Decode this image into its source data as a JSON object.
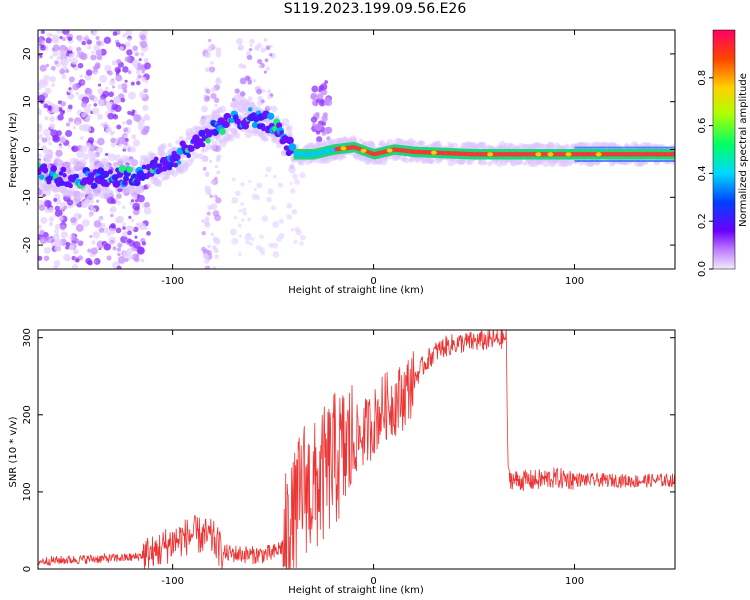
{
  "figure": {
    "title": "S119.2023.199.09.56.E26"
  },
  "chart_data": [
    {
      "type": "heatmap",
      "xlabel": "Height of straight line (km)",
      "ylabel": "Frequency (Hz)",
      "xlim": [
        -167,
        150
      ],
      "ylim": [
        -25,
        25
      ],
      "x_ticks": [
        -100,
        0,
        100
      ],
      "y_ticks": [
        -20,
        -10,
        0,
        10,
        20
      ],
      "colorbar": {
        "label": "Normalized spectral amplitude",
        "range": [
          0,
          1
        ],
        "ticks": [
          0.0,
          0.2,
          0.4,
          0.6,
          0.8
        ]
      },
      "ridge": [
        {
          "x": -167,
          "y": -5
        },
        {
          "x": -150,
          "y": -6
        },
        {
          "x": -130,
          "y": -6
        },
        {
          "x": -115,
          "y": -5
        },
        {
          "x": -100,
          "y": -2
        },
        {
          "x": -90,
          "y": 1
        },
        {
          "x": -80,
          "y": 4
        },
        {
          "x": -70,
          "y": 6
        },
        {
          "x": -60,
          "y": 7
        },
        {
          "x": -50,
          "y": 5
        },
        {
          "x": -45,
          "y": 3
        },
        {
          "x": -40,
          "y": -1
        },
        {
          "x": -30,
          "y": -1
        },
        {
          "x": -20,
          "y": 0
        },
        {
          "x": -10,
          "y": 0.5
        },
        {
          "x": 0,
          "y": -1
        },
        {
          "x": 10,
          "y": 0
        },
        {
          "x": 20,
          "y": -0.5
        },
        {
          "x": 50,
          "y": -1
        },
        {
          "x": 80,
          "y": -1
        },
        {
          "x": 100,
          "y": -1
        },
        {
          "x": 150,
          "y": -1
        }
      ]
    },
    {
      "type": "line",
      "xlabel": "Height of straight line (km)",
      "ylabel": "SNR (10 * v/v)",
      "xlim": [
        -167,
        150
      ],
      "ylim": [
        0,
        310
      ],
      "x_ticks": [
        -100,
        0,
        100
      ],
      "y_ticks": [
        0,
        100,
        200,
        300
      ],
      "color": "#ee3333",
      "series": [
        {
          "x": [
            -167,
            -150,
            -120,
            -110,
            -100,
            -90,
            -80,
            -75,
            -70,
            -60,
            -50,
            -45,
            -40,
            -35,
            -30,
            -25,
            -20,
            -15,
            -10,
            -5,
            0,
            5,
            10,
            15,
            20,
            25,
            30,
            35,
            40,
            50,
            60,
            66,
            67,
            70,
            80,
            90,
            100,
            110,
            120,
            130,
            140,
            150
          ],
          "values": [
            10,
            12,
            15,
            20,
            35,
            45,
            40,
            20,
            20,
            18,
            20,
            30,
            55,
            110,
            100,
            120,
            140,
            150,
            165,
            175,
            190,
            210,
            215,
            225,
            245,
            265,
            280,
            288,
            292,
            295,
            297,
            300,
            120,
            115,
            115,
            118,
            116,
            115,
            115,
            114,
            115,
            115
          ]
        }
      ]
    }
  ]
}
